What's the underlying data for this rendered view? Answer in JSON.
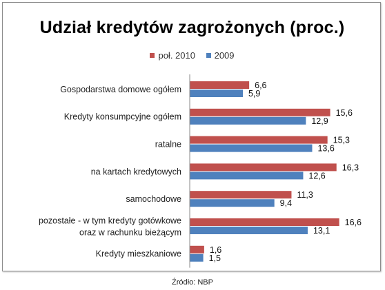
{
  "chart_data": {
    "type": "bar",
    "orientation": "horizontal",
    "title": "Udział kredytów zagrożonych (proc.)",
    "xlabel": "",
    "ylabel": "",
    "xlim": [
      0,
      18
    ],
    "grid": false,
    "legend_position": "top",
    "categories": [
      [
        "Gospodarstwa domowe ogółem"
      ],
      [
        "Kredyty konsumpcyjne ogółem"
      ],
      [
        "ratalne"
      ],
      [
        "na kartach kredytowych"
      ],
      [
        "samochodowe"
      ],
      [
        "pozostałe - w tym  kredyty gotówkowe",
        "oraz w rachunku bieżącym"
      ],
      [
        "Kredyty mieszkaniowe"
      ]
    ],
    "series": [
      {
        "name": "poł. 2010",
        "color": "#c0504d",
        "values": [
          6.6,
          15.6,
          15.3,
          16.3,
          11.3,
          16.6,
          1.6
        ],
        "labels": [
          "6,6",
          "15,6",
          "15,3",
          "16,3",
          "11,3",
          "16,6",
          "1,6"
        ]
      },
      {
        "name": "2009",
        "color": "#4f81bd",
        "values": [
          5.9,
          12.9,
          13.6,
          12.6,
          9.4,
          13.1,
          1.5
        ],
        "labels": [
          "5,9",
          "12,9",
          "13,6",
          "12,6",
          "9,4",
          "13,1",
          "1,5"
        ]
      }
    ]
  },
  "source": "Źródło: NBP"
}
